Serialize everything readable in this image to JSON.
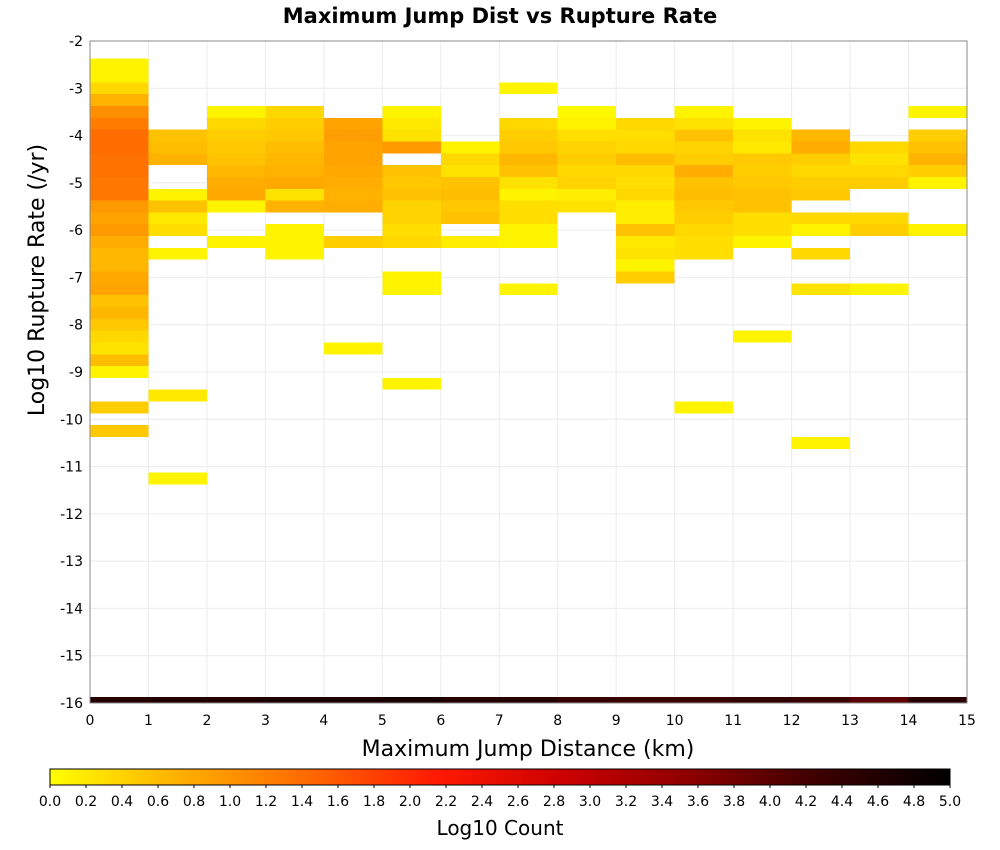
{
  "chart_data": {
    "type": "heatmap",
    "title": "Maximum Jump Dist vs Rupture Rate",
    "xlabel": "Maximum Jump Distance (km)",
    "ylabel": "Log10 Rupture Rate (/yr)",
    "colorbar_label": "Log10 Count",
    "xlim": [
      0,
      15
    ],
    "ylim": [
      -16,
      -2
    ],
    "x_ticks": [
      "0",
      "1",
      "2",
      "3",
      "4",
      "5",
      "6",
      "7",
      "8",
      "9",
      "10",
      "11",
      "12",
      "13",
      "14",
      "15"
    ],
    "y_ticks": [
      "-2",
      "-3",
      "-4",
      "-5",
      "-6",
      "-7",
      "-8",
      "-9",
      "-10",
      "-11",
      "-12",
      "-13",
      "-14",
      "-15",
      "-16"
    ],
    "colorbar_ticks": [
      "0.0",
      "0.2",
      "0.4",
      "0.6",
      "0.8",
      "1.0",
      "1.2",
      "1.4",
      "1.6",
      "1.8",
      "2.0",
      "2.2",
      "2.4",
      "2.6",
      "2.8",
      "3.0",
      "3.2",
      "3.4",
      "3.6",
      "3.8",
      "4.0",
      "4.2",
      "4.4",
      "4.6",
      "4.8",
      "5.0"
    ],
    "colorbar_range": [
      0,
      5
    ],
    "colormap": [
      "#ffff00",
      "#ffb000",
      "#ff6a00",
      "#ff1a00",
      "#cc0000",
      "#8b0000",
      "#3b0000",
      "#000000"
    ],
    "grid": true,
    "bin_width_x": 1,
    "bin_height_y": 0.25,
    "cells": [
      {
        "x": 0,
        "y": -2.5,
        "v": 0.1
      },
      {
        "x": 0,
        "y": -2.75,
        "v": 0.1
      },
      {
        "x": 0,
        "y": -3.0,
        "v": 0.35
      },
      {
        "x": 0,
        "y": -3.25,
        "v": 0.7
      },
      {
        "x": 0,
        "y": -3.5,
        "v": 1.05
      },
      {
        "x": 0,
        "y": -3.75,
        "v": 1.25
      },
      {
        "x": 0,
        "y": -4.0,
        "v": 1.4
      },
      {
        "x": 0,
        "y": -4.25,
        "v": 1.4
      },
      {
        "x": 0,
        "y": -4.5,
        "v": 1.35
      },
      {
        "x": 0,
        "y": -4.75,
        "v": 1.35
      },
      {
        "x": 0,
        "y": -5.0,
        "v": 1.3
      },
      {
        "x": 0,
        "y": -5.25,
        "v": 1.3
      },
      {
        "x": 0,
        "y": -5.5,
        "v": 0.95
      },
      {
        "x": 0,
        "y": -5.75,
        "v": 0.85
      },
      {
        "x": 0,
        "y": -6.0,
        "v": 0.95
      },
      {
        "x": 0,
        "y": -6.25,
        "v": 0.75
      },
      {
        "x": 0,
        "y": -6.5,
        "v": 0.65
      },
      {
        "x": 0,
        "y": -6.75,
        "v": 0.65
      },
      {
        "x": 0,
        "y": -7.0,
        "v": 0.8
      },
      {
        "x": 0,
        "y": -7.25,
        "v": 0.85
      },
      {
        "x": 0,
        "y": -7.5,
        "v": 0.55
      },
      {
        "x": 0,
        "y": -7.75,
        "v": 0.65
      },
      {
        "x": 0,
        "y": -8.0,
        "v": 0.5
      },
      {
        "x": 0,
        "y": -8.25,
        "v": 0.35
      },
      {
        "x": 0,
        "y": -8.5,
        "v": 0.25
      },
      {
        "x": 0,
        "y": -8.75,
        "v": 0.6
      },
      {
        "x": 0,
        "y": -9.0,
        "v": 0.1
      },
      {
        "x": 0,
        "y": -9.75,
        "v": 0.45
      },
      {
        "x": 0,
        "y": -10.25,
        "v": 0.5
      },
      {
        "x": 1,
        "y": -4.0,
        "v": 0.55
      },
      {
        "x": 1,
        "y": -4.25,
        "v": 0.6
      },
      {
        "x": 1,
        "y": -4.5,
        "v": 0.7
      },
      {
        "x": 1,
        "y": -5.25,
        "v": 0.1
      },
      {
        "x": 1,
        "y": -5.5,
        "v": 0.55
      },
      {
        "x": 1,
        "y": -5.75,
        "v": 0.2
      },
      {
        "x": 1,
        "y": -6.0,
        "v": 0.3
      },
      {
        "x": 1,
        "y": -6.5,
        "v": 0.1
      },
      {
        "x": 1,
        "y": -9.5,
        "v": 0.2
      },
      {
        "x": 1,
        "y": -11.25,
        "v": 0.1
      },
      {
        "x": 2,
        "y": -3.5,
        "v": 0.1
      },
      {
        "x": 2,
        "y": -3.75,
        "v": 0.35
      },
      {
        "x": 2,
        "y": -4.0,
        "v": 0.45
      },
      {
        "x": 2,
        "y": -4.25,
        "v": 0.5
      },
      {
        "x": 2,
        "y": -4.5,
        "v": 0.55
      },
      {
        "x": 2,
        "y": -4.75,
        "v": 0.65
      },
      {
        "x": 2,
        "y": -5.0,
        "v": 0.75
      },
      {
        "x": 2,
        "y": -5.25,
        "v": 0.8
      },
      {
        "x": 2,
        "y": -5.5,
        "v": 0.1
      },
      {
        "x": 2,
        "y": -6.25,
        "v": 0.1
      },
      {
        "x": 3,
        "y": -3.5,
        "v": 0.35
      },
      {
        "x": 3,
        "y": -3.75,
        "v": 0.45
      },
      {
        "x": 3,
        "y": -4.0,
        "v": 0.5
      },
      {
        "x": 3,
        "y": -4.25,
        "v": 0.6
      },
      {
        "x": 3,
        "y": -4.5,
        "v": 0.65
      },
      {
        "x": 3,
        "y": -4.75,
        "v": 0.7
      },
      {
        "x": 3,
        "y": -5.0,
        "v": 0.8
      },
      {
        "x": 3,
        "y": -5.25,
        "v": 0.25
      },
      {
        "x": 3,
        "y": -5.5,
        "v": 0.7
      },
      {
        "x": 3,
        "y": -6.0,
        "v": 0.1
      },
      {
        "x": 3,
        "y": -6.25,
        "v": 0.1
      },
      {
        "x": 3,
        "y": -6.5,
        "v": 0.1
      },
      {
        "x": 4,
        "y": -3.75,
        "v": 0.85
      },
      {
        "x": 4,
        "y": -4.0,
        "v": 0.9
      },
      {
        "x": 4,
        "y": -4.25,
        "v": 0.85
      },
      {
        "x": 4,
        "y": -4.5,
        "v": 0.85
      },
      {
        "x": 4,
        "y": -4.75,
        "v": 0.8
      },
      {
        "x": 4,
        "y": -5.0,
        "v": 0.75
      },
      {
        "x": 4,
        "y": -5.25,
        "v": 0.7
      },
      {
        "x": 4,
        "y": -5.5,
        "v": 0.75
      },
      {
        "x": 4,
        "y": -6.25,
        "v": 0.45
      },
      {
        "x": 4,
        "y": -8.5,
        "v": 0.1
      },
      {
        "x": 5,
        "y": -3.5,
        "v": 0.1
      },
      {
        "x": 5,
        "y": -3.75,
        "v": 0.2
      },
      {
        "x": 5,
        "y": -4.0,
        "v": 0.25
      },
      {
        "x": 5,
        "y": -4.25,
        "v": 0.95
      },
      {
        "x": 5,
        "y": -4.75,
        "v": 0.55
      },
      {
        "x": 5,
        "y": -5.0,
        "v": 0.5
      },
      {
        "x": 5,
        "y": -5.25,
        "v": 0.55
      },
      {
        "x": 5,
        "y": -5.5,
        "v": 0.4
      },
      {
        "x": 5,
        "y": -5.75,
        "v": 0.4
      },
      {
        "x": 5,
        "y": -6.0,
        "v": 0.3
      },
      {
        "x": 5,
        "y": -6.25,
        "v": 0.35
      },
      {
        "x": 5,
        "y": -7.0,
        "v": 0.1
      },
      {
        "x": 5,
        "y": -7.25,
        "v": 0.1
      },
      {
        "x": 5,
        "y": -9.25,
        "v": 0.1
      },
      {
        "x": 6,
        "y": -4.25,
        "v": 0.1
      },
      {
        "x": 6,
        "y": -4.5,
        "v": 0.35
      },
      {
        "x": 6,
        "y": -4.75,
        "v": 0.25
      },
      {
        "x": 6,
        "y": -5.0,
        "v": 0.55
      },
      {
        "x": 6,
        "y": -5.25,
        "v": 0.6
      },
      {
        "x": 6,
        "y": -5.5,
        "v": 0.5
      },
      {
        "x": 6,
        "y": -5.75,
        "v": 0.55
      },
      {
        "x": 6,
        "y": -6.25,
        "v": 0.15
      },
      {
        "x": 7,
        "y": -3.0,
        "v": 0.1
      },
      {
        "x": 7,
        "y": -3.75,
        "v": 0.35
      },
      {
        "x": 7,
        "y": -4.0,
        "v": 0.45
      },
      {
        "x": 7,
        "y": -4.25,
        "v": 0.5
      },
      {
        "x": 7,
        "y": -4.5,
        "v": 0.65
      },
      {
        "x": 7,
        "y": -4.75,
        "v": 0.55
      },
      {
        "x": 7,
        "y": -5.0,
        "v": 0.25
      },
      {
        "x": 7,
        "y": -5.25,
        "v": 0.1
      },
      {
        "x": 7,
        "y": -5.5,
        "v": 0.3
      },
      {
        "x": 7,
        "y": -5.75,
        "v": 0.3
      },
      {
        "x": 7,
        "y": -6.0,
        "v": 0.1
      },
      {
        "x": 7,
        "y": -6.25,
        "v": 0.1
      },
      {
        "x": 7,
        "y": -7.25,
        "v": 0.1
      },
      {
        "x": 8,
        "y": -3.5,
        "v": 0.05
      },
      {
        "x": 8,
        "y": -3.75,
        "v": 0.1
      },
      {
        "x": 8,
        "y": -4.0,
        "v": 0.3
      },
      {
        "x": 8,
        "y": -4.25,
        "v": 0.4
      },
      {
        "x": 8,
        "y": -4.5,
        "v": 0.45
      },
      {
        "x": 8,
        "y": -4.75,
        "v": 0.35
      },
      {
        "x": 8,
        "y": -5.0,
        "v": 0.4
      },
      {
        "x": 8,
        "y": -5.25,
        "v": 0.15
      },
      {
        "x": 8,
        "y": -5.5,
        "v": 0.25
      },
      {
        "x": 9,
        "y": -3.75,
        "v": 0.35
      },
      {
        "x": 9,
        "y": -4.0,
        "v": 0.3
      },
      {
        "x": 9,
        "y": -4.25,
        "v": 0.35
      },
      {
        "x": 9,
        "y": -4.5,
        "v": 0.6
      },
      {
        "x": 9,
        "y": -4.75,
        "v": 0.35
      },
      {
        "x": 9,
        "y": -5.0,
        "v": 0.3
      },
      {
        "x": 9,
        "y": -5.25,
        "v": 0.35
      },
      {
        "x": 9,
        "y": -5.5,
        "v": 0.15
      },
      {
        "x": 9,
        "y": -5.75,
        "v": 0.15
      },
      {
        "x": 9,
        "y": -6.0,
        "v": 0.55
      },
      {
        "x": 9,
        "y": -6.25,
        "v": 0.2
      },
      {
        "x": 9,
        "y": -6.5,
        "v": 0.25
      },
      {
        "x": 9,
        "y": -6.75,
        "v": 0.1
      },
      {
        "x": 9,
        "y": -7.0,
        "v": 0.45
      },
      {
        "x": 10,
        "y": -3.5,
        "v": 0.1
      },
      {
        "x": 10,
        "y": -3.75,
        "v": 0.25
      },
      {
        "x": 10,
        "y": -4.0,
        "v": 0.55
      },
      {
        "x": 10,
        "y": -4.25,
        "v": 0.4
      },
      {
        "x": 10,
        "y": -4.5,
        "v": 0.45
      },
      {
        "x": 10,
        "y": -4.75,
        "v": 0.75
      },
      {
        "x": 10,
        "y": -5.0,
        "v": 0.55
      },
      {
        "x": 10,
        "y": -5.25,
        "v": 0.6
      },
      {
        "x": 10,
        "y": -5.5,
        "v": 0.5
      },
      {
        "x": 10,
        "y": -5.75,
        "v": 0.45
      },
      {
        "x": 10,
        "y": -6.0,
        "v": 0.35
      },
      {
        "x": 10,
        "y": -6.25,
        "v": 0.3
      },
      {
        "x": 10,
        "y": -6.5,
        "v": 0.3
      },
      {
        "x": 10,
        "y": -9.75,
        "v": 0.1
      },
      {
        "x": 11,
        "y": -3.75,
        "v": 0.1
      },
      {
        "x": 11,
        "y": -4.0,
        "v": 0.25
      },
      {
        "x": 11,
        "y": -4.25,
        "v": 0.2
      },
      {
        "x": 11,
        "y": -4.5,
        "v": 0.5
      },
      {
        "x": 11,
        "y": -4.75,
        "v": 0.45
      },
      {
        "x": 11,
        "y": -5.0,
        "v": 0.5
      },
      {
        "x": 11,
        "y": -5.25,
        "v": 0.55
      },
      {
        "x": 11,
        "y": -5.5,
        "v": 0.55
      },
      {
        "x": 11,
        "y": -5.75,
        "v": 0.3
      },
      {
        "x": 11,
        "y": -6.0,
        "v": 0.3
      },
      {
        "x": 11,
        "y": -6.25,
        "v": 0.1
      },
      {
        "x": 11,
        "y": -8.25,
        "v": 0.1
      },
      {
        "x": 12,
        "y": -4.0,
        "v": 0.65
      },
      {
        "x": 12,
        "y": -4.25,
        "v": 0.75
      },
      {
        "x": 12,
        "y": -4.5,
        "v": 0.45
      },
      {
        "x": 12,
        "y": -4.75,
        "v": 0.35
      },
      {
        "x": 12,
        "y": -5.0,
        "v": 0.45
      },
      {
        "x": 12,
        "y": -5.25,
        "v": 0.5
      },
      {
        "x": 12,
        "y": -5.75,
        "v": 0.35
      },
      {
        "x": 12,
        "y": -6.0,
        "v": 0.1
      },
      {
        "x": 12,
        "y": -6.5,
        "v": 0.35
      },
      {
        "x": 12,
        "y": -7.25,
        "v": 0.25
      },
      {
        "x": 12,
        "y": -10.5,
        "v": 0.1
      },
      {
        "x": 13,
        "y": -4.25,
        "v": 0.35
      },
      {
        "x": 13,
        "y": -4.5,
        "v": 0.25
      },
      {
        "x": 13,
        "y": -4.75,
        "v": 0.35
      },
      {
        "x": 13,
        "y": -5.0,
        "v": 0.45
      },
      {
        "x": 13,
        "y": -5.75,
        "v": 0.35
      },
      {
        "x": 13,
        "y": -6.0,
        "v": 0.45
      },
      {
        "x": 13,
        "y": -7.25,
        "v": 0.1
      },
      {
        "x": 14,
        "y": -3.5,
        "v": 0.1
      },
      {
        "x": 14,
        "y": -4.0,
        "v": 0.45
      },
      {
        "x": 14,
        "y": -4.25,
        "v": 0.55
      },
      {
        "x": 14,
        "y": -4.5,
        "v": 0.7
      },
      {
        "x": 14,
        "y": -4.75,
        "v": 0.45
      },
      {
        "x": 14,
        "y": -5.0,
        "v": 0.1
      },
      {
        "x": 14,
        "y": -6.0,
        "v": 0.1
      }
    ],
    "bottom_strip": {
      "y": -16,
      "values": [
        4.55,
        4.6,
        4.6,
        4.65,
        4.65,
        4.7,
        4.55,
        4.55,
        4.35,
        4.3,
        4.3,
        4.4,
        4.3,
        4.0,
        4.5
      ]
    }
  }
}
